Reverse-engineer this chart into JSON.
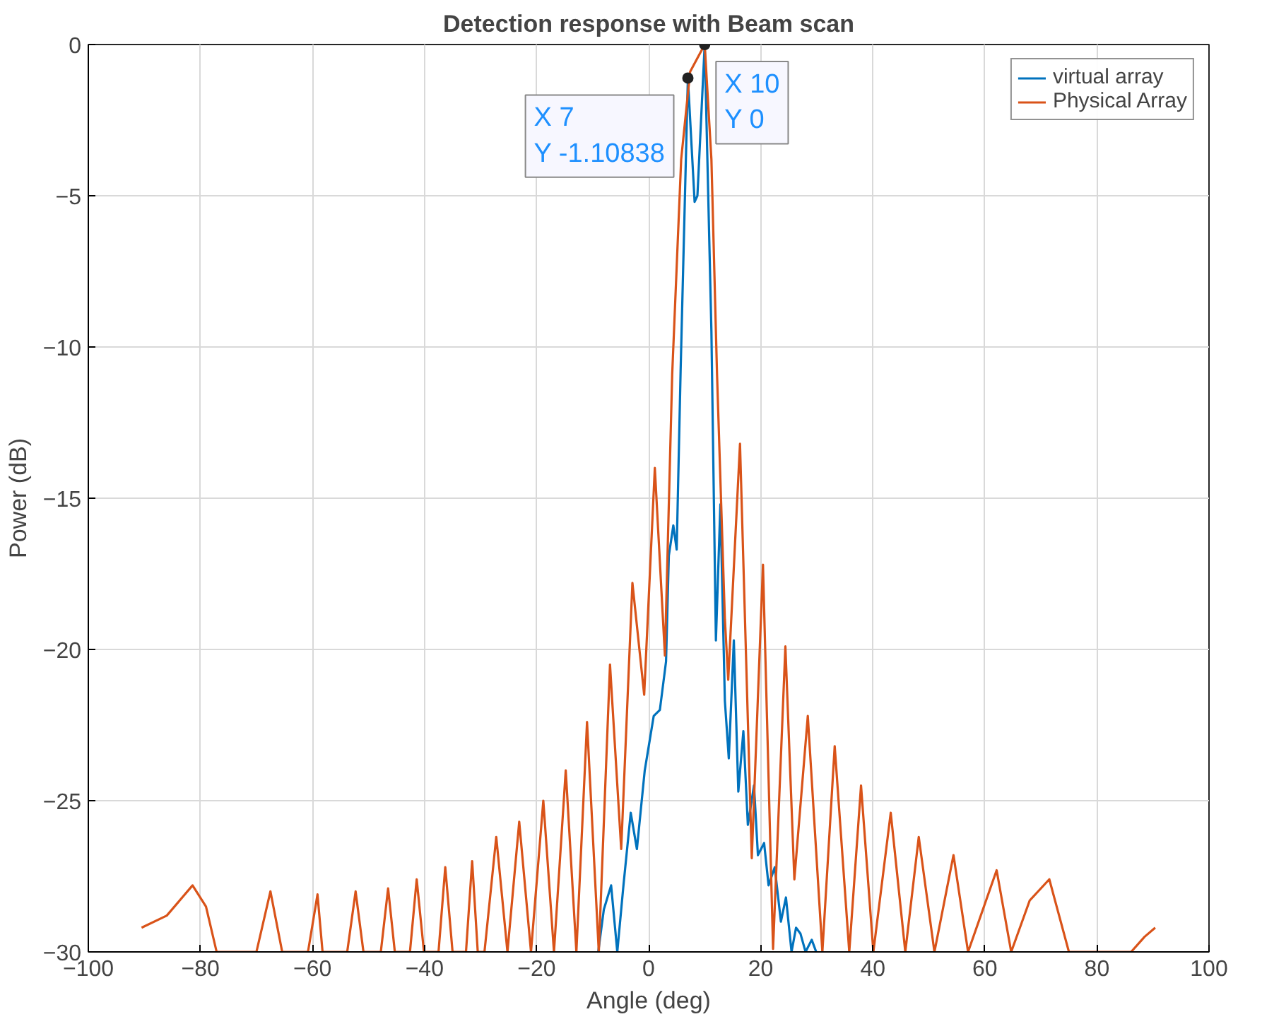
{
  "chart_data": {
    "type": "line",
    "title": "Detection response with Beam scan",
    "xlabel": "Angle (deg)",
    "ylabel": "Power (dB)",
    "xlim": [
      -100,
      100
    ],
    "xticks": [
      -100,
      -80,
      -60,
      -40,
      -20,
      0,
      20,
      40,
      60,
      80,
      100
    ],
    "ylim": [
      -30,
      0
    ],
    "yticks": [
      -30,
      -25,
      -20,
      -15,
      -10,
      -5,
      0
    ],
    "grid": true,
    "legend": "top right",
    "marker": "none",
    "line_style": "solid",
    "annotations": [
      {
        "text": "X 7\nY -1.10838",
        "x": 7,
        "y": -1.10838
      },
      {
        "text": "X 10\nY 0",
        "x": 10,
        "y": 0
      }
    ],
    "series": [
      {
        "name": "virtual array",
        "color": "#0072bd",
        "x": [
          -9,
          -8,
          -6.7,
          -5.6,
          -4.5,
          -3.2,
          -2.1,
          -0.7,
          0.9,
          2.0,
          3.1,
          3.6,
          4.4,
          5.0,
          5.7,
          7.0,
          8.2,
          8.7,
          10,
          11.2,
          12.0,
          12.8,
          13.6,
          14.3,
          15.2,
          16.0,
          16.9,
          17.7,
          18.8,
          19.5,
          20.6,
          21.4,
          22.5,
          23.6,
          24.5,
          25.5,
          26.3,
          27.1,
          28.0,
          29.1,
          29.9
        ],
        "values": [
          -30,
          -28.6,
          -27.8,
          -30,
          -27.8,
          -25.4,
          -26.6,
          -24.0,
          -22.2,
          -22.0,
          -20.4,
          -16.9,
          -15.9,
          -16.7,
          -10.8,
          -1.1,
          -5.2,
          -5.0,
          0,
          -9.5,
          -19.7,
          -15.2,
          -21.7,
          -23.6,
          -19.7,
          -24.7,
          -22.7,
          -25.8,
          -24.5,
          -26.8,
          -26.4,
          -27.8,
          -27.2,
          -29.0,
          -28.2,
          -30,
          -29.2,
          -29.4,
          -30,
          -29.6,
          -30
        ]
      },
      {
        "name": "Physical Array",
        "color": "#d95319",
        "x": [
          -90.5,
          -86,
          -81.4,
          -79,
          -77.1,
          -70,
          -67.5,
          -65.4,
          -60.8,
          -59.1,
          -58.2,
          -53.8,
          -52.3,
          -50.9,
          -47.8,
          -46.5,
          -45.3,
          -42.6,
          -41.4,
          -40.1,
          -37.5,
          -36.3,
          -35,
          -32.6,
          -31.5,
          -30.5,
          -29.3,
          -27.2,
          -25.2,
          -23.1,
          -21,
          -18.8,
          -16.9,
          -14.8,
          -12.9,
          -11.0,
          -8.9,
          -6.9,
          -4.9,
          -2.9,
          -0.8,
          1.1,
          2.9,
          4.2,
          5.8,
          7.4,
          10,
          11.2,
          12.2,
          13.6,
          14.2,
          16.3,
          18.4,
          20.4,
          22.2,
          24.4,
          26.0,
          28.4,
          31,
          33.2,
          35.8,
          37.9,
          40.1,
          43.2,
          45.8,
          48.2,
          51,
          54.4,
          57,
          62.1,
          64.7,
          68,
          71.5,
          75,
          86.1,
          88.5,
          90.4
        ],
        "values": [
          -29.2,
          -28.8,
          -27.8,
          -28.5,
          -30,
          -30,
          -28.0,
          -30,
          -30,
          -28.1,
          -30,
          -30,
          -28.0,
          -30,
          -30,
          -27.9,
          -30,
          -30,
          -27.6,
          -30,
          -30,
          -27.2,
          -30,
          -30,
          -27.0,
          -30,
          -30,
          -26.2,
          -30,
          -25.7,
          -30,
          -25.0,
          -30,
          -24.0,
          -30,
          -22.4,
          -30,
          -20.5,
          -26.6,
          -17.8,
          -21.5,
          -14.0,
          -20.2,
          -10.9,
          -3.8,
          -0.9,
          0,
          -3.8,
          -10.9,
          -19.0,
          -21.0,
          -13.2,
          -26.9,
          -17.2,
          -29.9,
          -19.9,
          -27.6,
          -22.2,
          -30,
          -23.2,
          -30,
          -24.5,
          -30,
          -25.4,
          -30,
          -26.2,
          -30,
          -26.8,
          -30,
          -27.3,
          -30,
          -28.3,
          -27.6,
          -30,
          -30,
          -29.5,
          -29.2
        ]
      }
    ]
  }
}
